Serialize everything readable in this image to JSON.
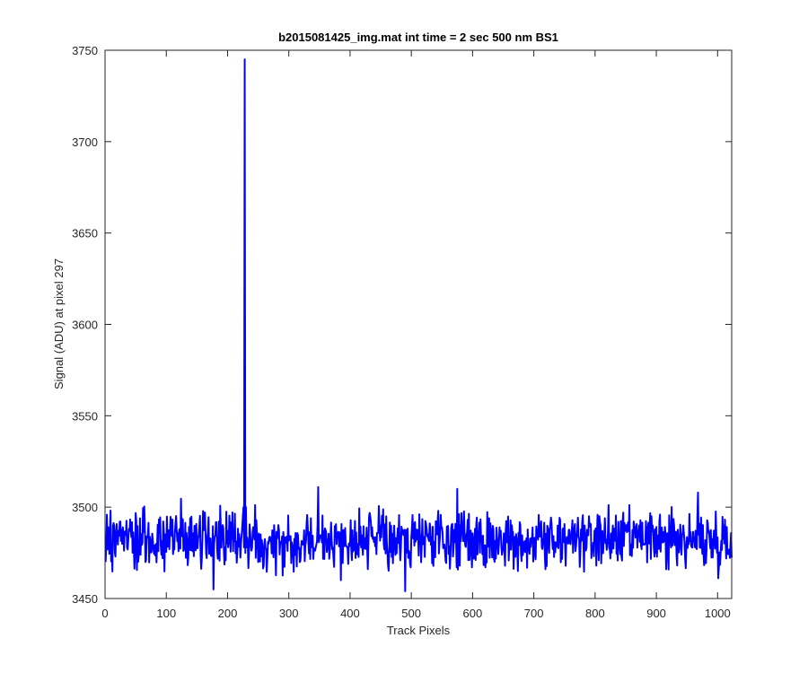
{
  "chart_data": {
    "type": "line",
    "title": "b2015081425_img.mat int time = 2 sec  500 nm BS1",
    "xlabel": "Track Pixels",
    "ylabel": "Signal (ADU) at pixel 297",
    "xlim": [
      0,
      1023
    ],
    "ylim": [
      3450,
      3750
    ],
    "x_ticks": [
      0,
      100,
      200,
      300,
      400,
      500,
      600,
      700,
      800,
      900,
      1000
    ],
    "y_ticks": [
      3450,
      3500,
      3550,
      3600,
      3650,
      3700,
      3750
    ],
    "x_tick_labels": [
      "0",
      "100",
      "200",
      "300",
      "400",
      "500",
      "600",
      "700",
      "800",
      "900",
      "1000"
    ],
    "y_tick_labels": [
      "3450",
      "3500",
      "3550",
      "3600",
      "3650",
      "3700",
      "3750"
    ],
    "grid": false,
    "series": [
      {
        "color": "#0000ff",
        "n_points": 1023,
        "baseline_mean": 3482,
        "noise_range": [
          3455,
          3511
        ],
        "notable_points": [
          {
            "x": 177,
            "y": 3455
          },
          {
            "x": 225,
            "y": 3495
          },
          {
            "x": 226,
            "y": 3500
          },
          {
            "x": 227,
            "y": 3478
          },
          {
            "x": 228,
            "y": 3745
          },
          {
            "x": 229,
            "y": 3475
          },
          {
            "x": 230,
            "y": 3500
          },
          {
            "x": 231,
            "y": 3478
          },
          {
            "x": 348,
            "y": 3511
          },
          {
            "x": 490,
            "y": 3454
          },
          {
            "x": 575,
            "y": 3510
          },
          {
            "x": 968,
            "y": 3508
          }
        ]
      }
    ]
  }
}
